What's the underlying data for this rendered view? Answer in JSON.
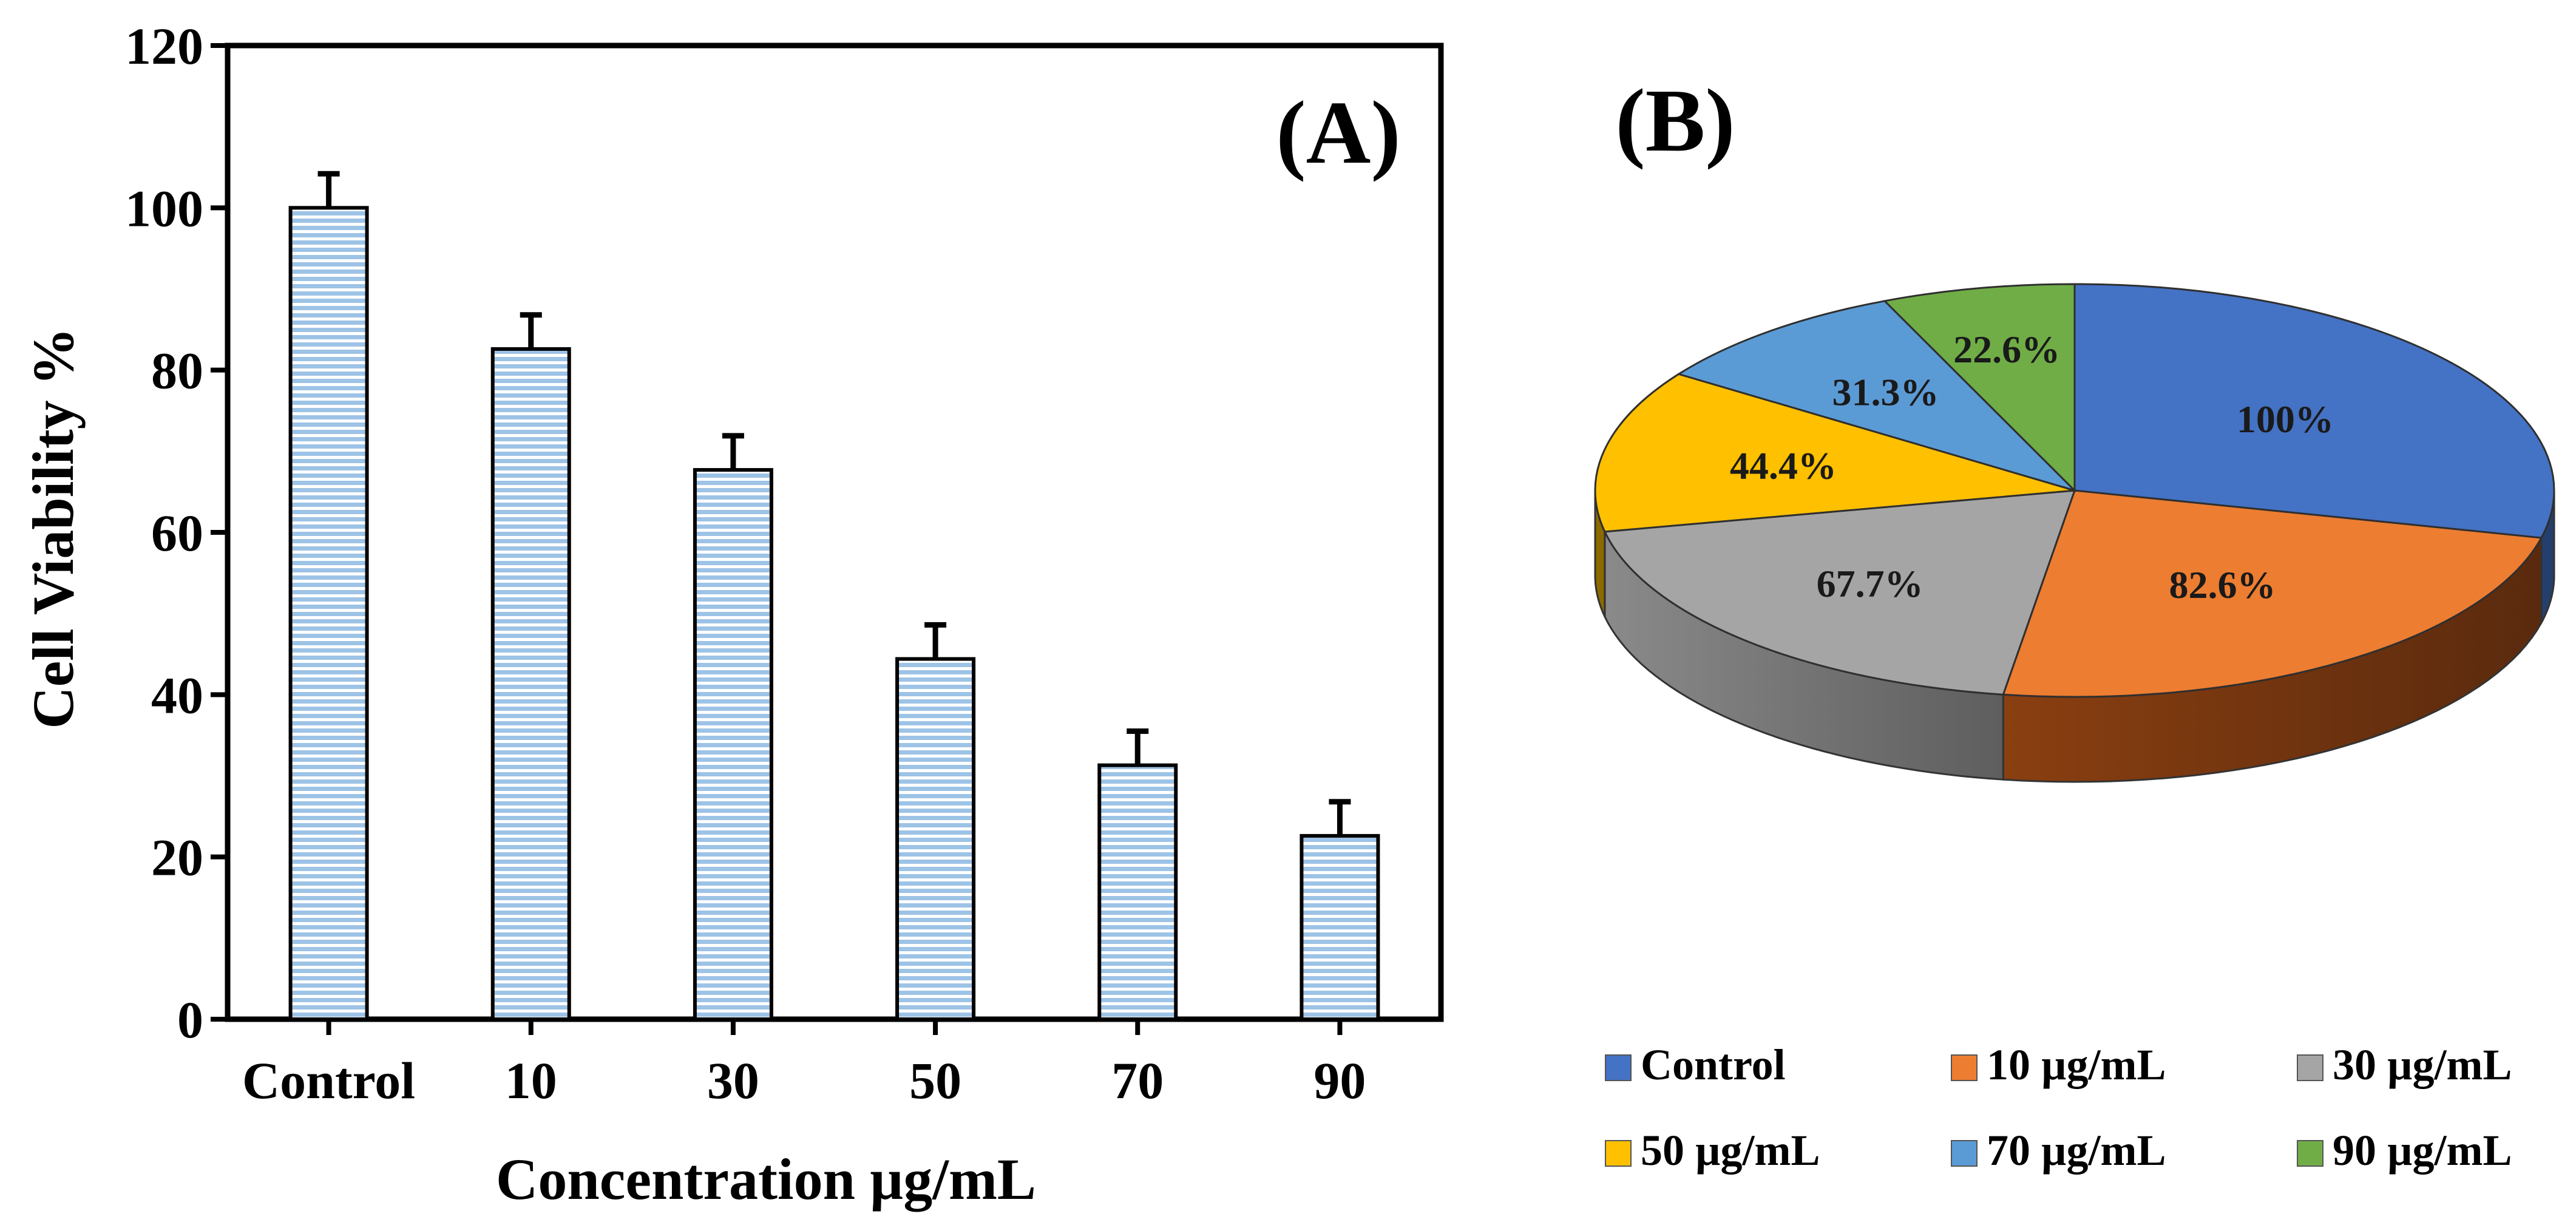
{
  "chart_data": [
    {
      "type": "bar",
      "panel_label": "(A)",
      "title": "",
      "xlabel": "Concentration µg/mL",
      "ylabel": "Cell Viability %",
      "categories": [
        "Control",
        "10",
        "30",
        "50",
        "70",
        "90"
      ],
      "values": [
        100,
        82.6,
        67.7,
        44.4,
        31.3,
        22.6
      ],
      "errors": [
        4.2,
        4.2,
        4.2,
        4.2,
        4.2,
        4.2
      ],
      "ylim": [
        0,
        120
      ],
      "yticks": [
        0,
        20,
        40,
        60,
        80,
        100,
        120
      ],
      "grid": false,
      "bar_color": "#9DC3E6",
      "bar_stripe_color": "#4472C4"
    },
    {
      "type": "pie",
      "panel_label": "(B)",
      "title": "",
      "labels": [
        "Control",
        "10 µg/mL",
        "30 µg/mL",
        "50 µg/mL",
        "70 µg/mL",
        "90 µg/mL"
      ],
      "values": [
        100,
        82.6,
        67.7,
        44.4,
        31.3,
        22.6
      ],
      "data_labels": [
        "100%",
        "82.6%",
        "67.7%",
        "44.4%",
        "31.3%",
        "22.6%"
      ],
      "colors": [
        "#4472C4",
        "#ED7D31",
        "#A5A5A5",
        "#FFC000",
        "#5B9BD5",
        "#70AD47"
      ],
      "legend_position": "bottom"
    }
  ]
}
